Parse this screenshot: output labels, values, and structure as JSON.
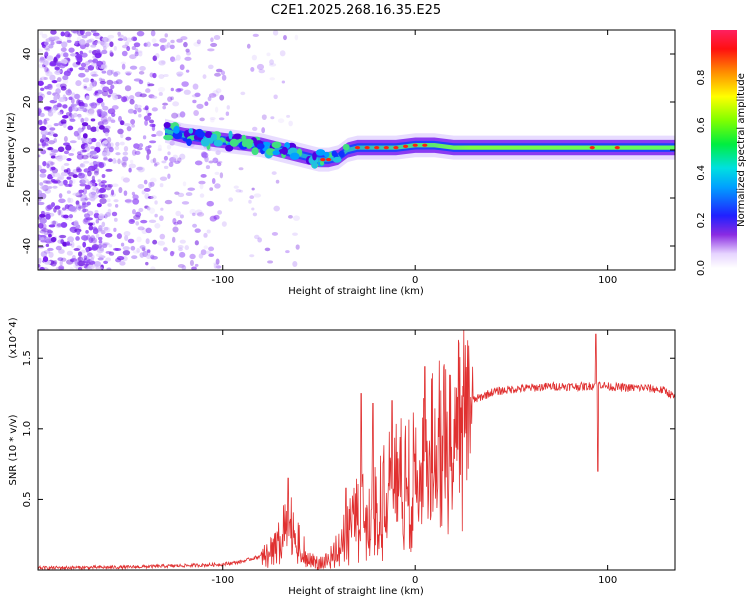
{
  "title": "C2E1.2025.268.16.35.E25",
  "colors": {
    "line": "#e03030",
    "purple": "#7a1ef0",
    "axis": "#000000"
  },
  "chart_data": [
    {
      "type": "heatmap",
      "name": "spectrogram",
      "xlabel": "Height of straight line (km)",
      "ylabel": "Frequency (Hz)",
      "xlim": [
        -196,
        135
      ],
      "ylim": [
        -50,
        50
      ],
      "xticks": [
        -100,
        0,
        100
      ],
      "yticks": [
        -40,
        -20,
        0,
        20,
        40
      ],
      "colorbar": {
        "label": "Normalized spectral amplitude",
        "range": [
          0,
          1
        ],
        "ticks": [
          "0.0",
          "0.2",
          "0.4",
          "0.6",
          "0.8"
        ]
      },
      "ridge": {
        "x": [
          -130,
          -120,
          -110,
          -100,
          -90,
          -80,
          -70,
          -60,
          -55,
          -50,
          -45,
          -40,
          -35,
          -30,
          -20,
          -10,
          0,
          10,
          20,
          40,
          60,
          80,
          90,
          100,
          135
        ],
        "y": [
          8,
          6,
          5,
          4,
          3,
          2,
          0,
          -2,
          -3,
          -4,
          -4,
          -3,
          0,
          1,
          1,
          1,
          2,
          2,
          1,
          1,
          1,
          1,
          1,
          1,
          1
        ]
      }
    },
    {
      "type": "line",
      "name": "snr",
      "xlabel": "Height of straight line (km)",
      "ylabel": "SNR (10 * v/v)",
      "y_multiplier": "(x10^4)",
      "xlim": [
        -196,
        135
      ],
      "ylim": [
        0,
        1.7
      ],
      "xticks": [
        -100,
        0,
        100
      ],
      "yticks": [
        "0.5",
        "1.0",
        "1.5"
      ],
      "envelope": {
        "x": [
          -196,
          -150,
          -110,
          -100,
          -90,
          -80,
          -75,
          -70,
          -65,
          -60,
          -55,
          -50,
          -45,
          -40,
          -35,
          -30,
          -25,
          -20,
          -15,
          -10,
          -5,
          0,
          5,
          10,
          15,
          20,
          25,
          30,
          40,
          50,
          60,
          70,
          80,
          90,
          95,
          100,
          110,
          120,
          130,
          135
        ],
        "y": [
          0.015,
          0.02,
          0.035,
          0.04,
          0.06,
          0.1,
          0.15,
          0.25,
          0.35,
          0.2,
          0.06,
          0.05,
          0.06,
          0.18,
          0.3,
          0.42,
          0.45,
          0.55,
          0.62,
          0.68,
          0.72,
          0.78,
          0.82,
          0.9,
          1.0,
          1.08,
          1.15,
          1.2,
          1.26,
          1.28,
          1.29,
          1.3,
          1.3,
          1.3,
          1.32,
          1.3,
          1.29,
          1.29,
          1.27,
          1.22
        ]
      },
      "spikes": [
        {
          "x": -66,
          "y": 0.65
        },
        {
          "x": -36,
          "y": 0.58
        },
        {
          "x": -28,
          "y": 1.25
        },
        {
          "x": -22,
          "y": 1.18
        },
        {
          "x": -12,
          "y": 1.2
        },
        {
          "x": 5,
          "y": 1.44
        },
        {
          "x": 94,
          "y": 1.67
        },
        {
          "x": 95,
          "y": 0.7
        }
      ]
    }
  ]
}
